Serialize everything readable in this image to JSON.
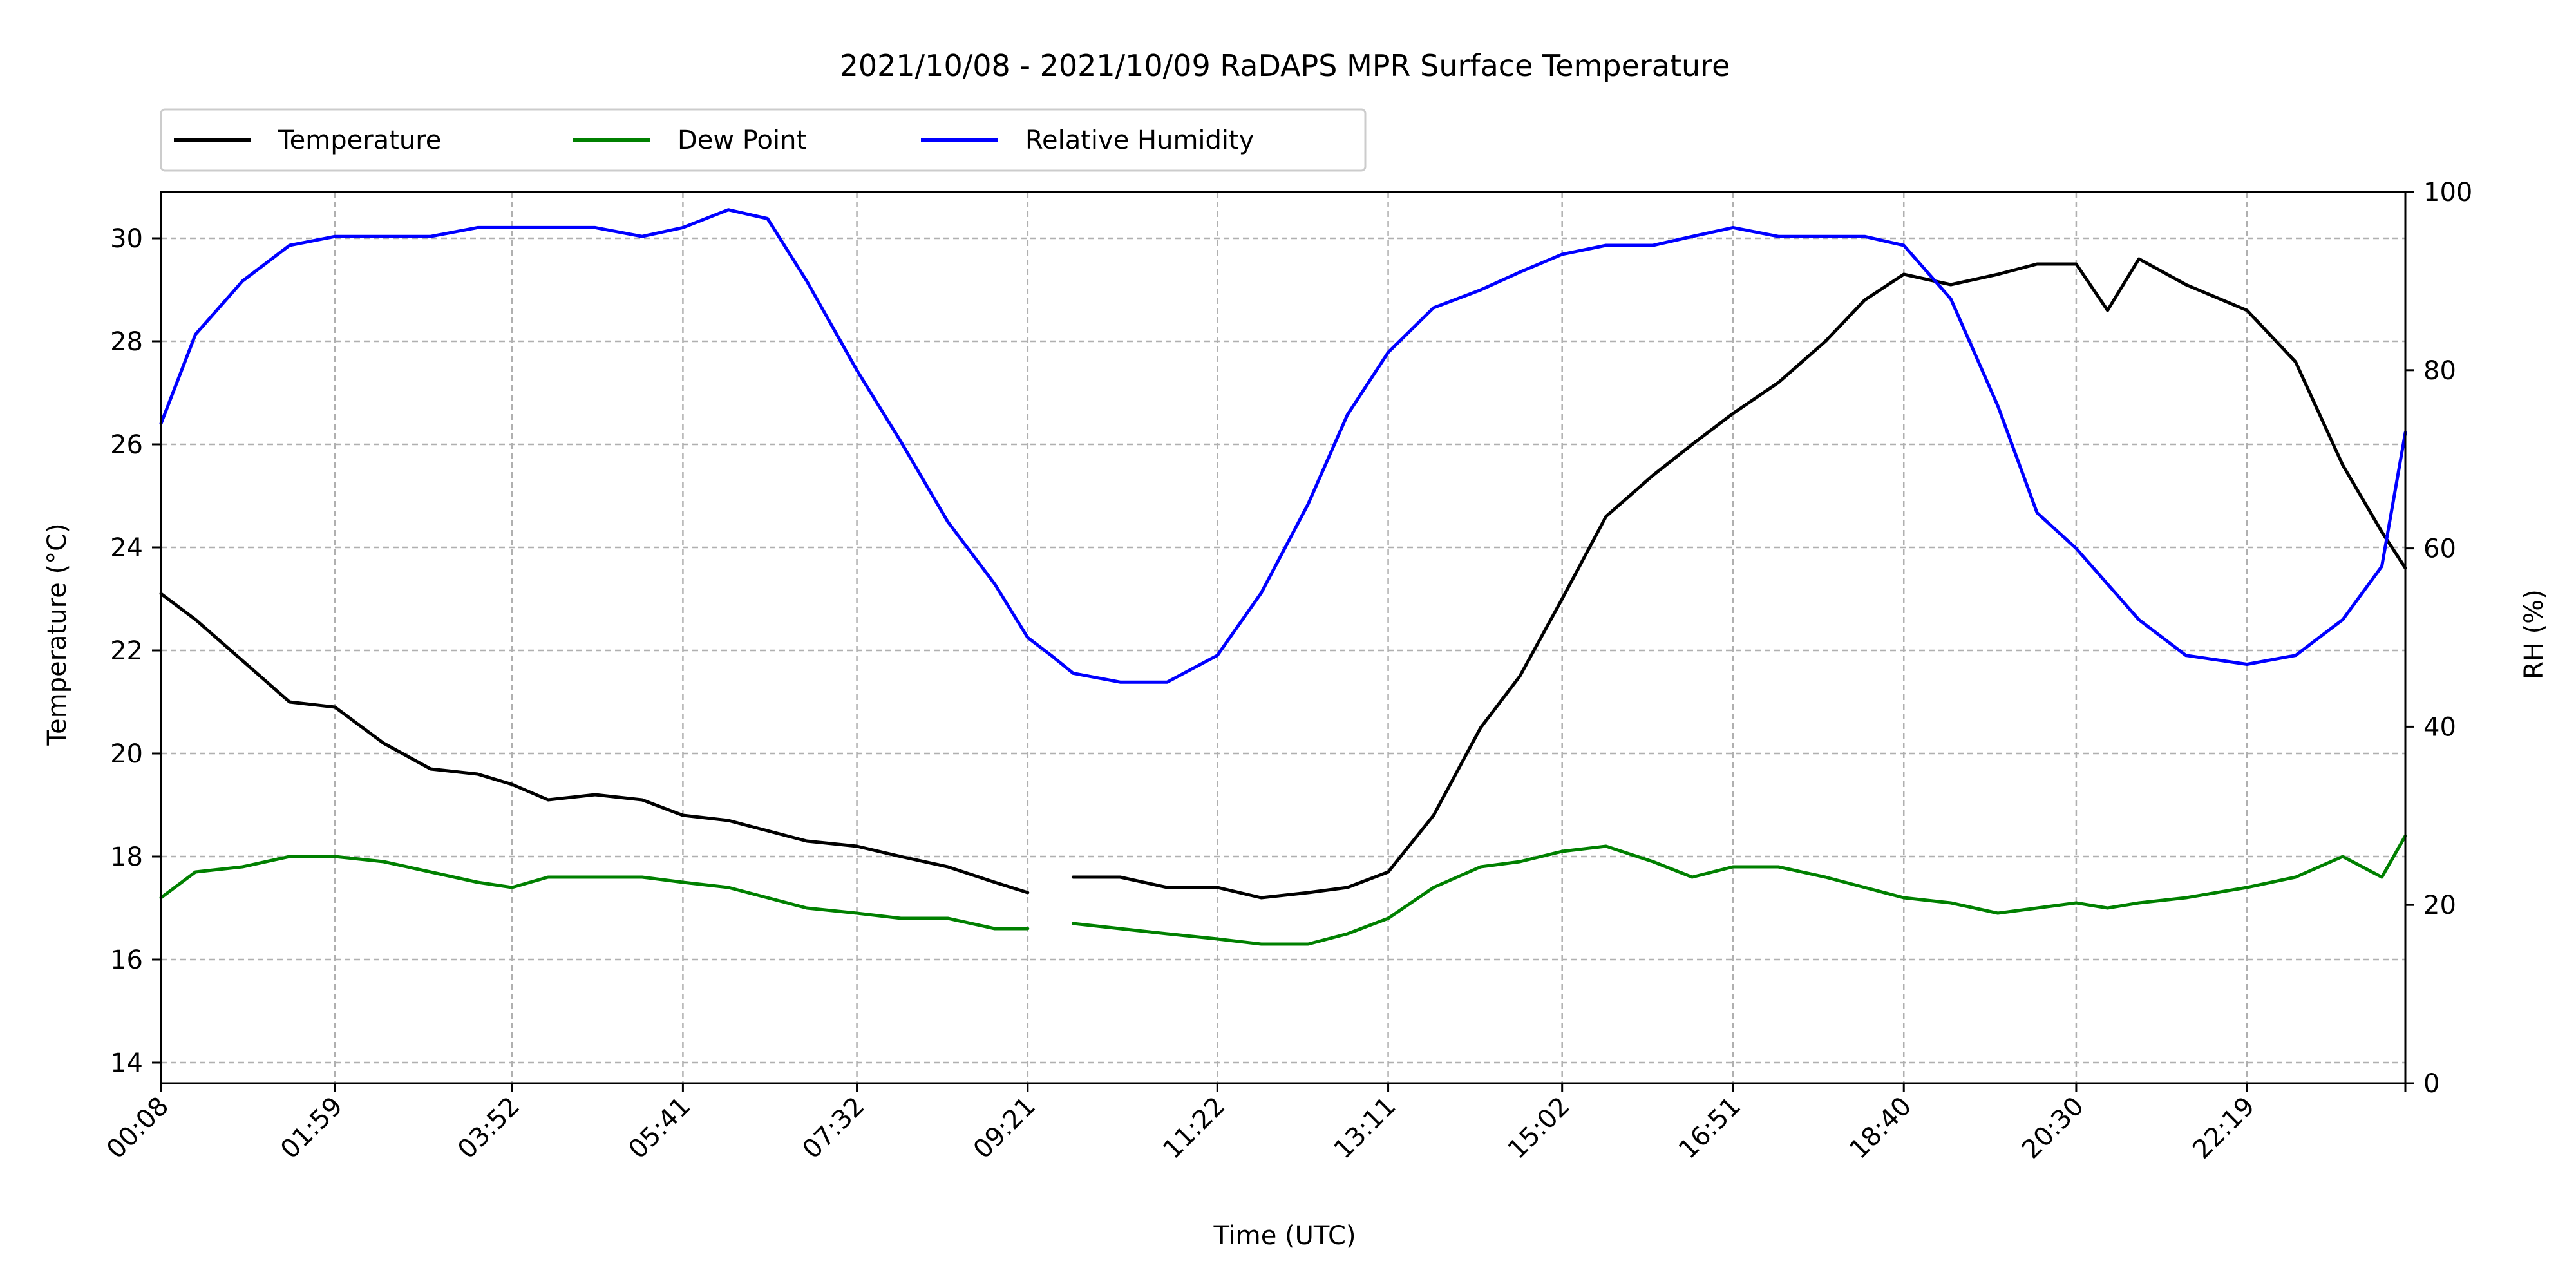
{
  "chart_data": {
    "type": "line",
    "title": "2021/10/08 - 2021/10/09 RaDAPS MPR Surface Temperature",
    "xlabel": "Time (UTC)",
    "ylabel": "Temperature ($^\\circ$C)",
    "ylabel_display": "Temperature (°C)",
    "y2label": "RH (%)",
    "xlim": [
      "00:08",
      "24:00"
    ],
    "ylim": [
      13.6,
      30.9
    ],
    "y2lim": [
      0,
      100
    ],
    "grid": true,
    "legend_placement": "top-left, above plot",
    "x_ticks": [
      "00:08",
      "01:59",
      "03:52",
      "05:41",
      "07:32",
      "09:21",
      "11:22",
      "13:11",
      "15:02",
      "16:51",
      "18:40",
      "20:30",
      "22:19"
    ],
    "y_ticks": [
      "14",
      "16",
      "18",
      "20",
      "22",
      "24",
      "26",
      "28",
      "30"
    ],
    "y2_ticks": [
      "0",
      "20",
      "40",
      "60",
      "80",
      "100"
    ],
    "x": [
      "00:08",
      "00:30",
      "01:00",
      "01:30",
      "01:59",
      "02:30",
      "03:00",
      "03:30",
      "03:52",
      "04:15",
      "04:45",
      "05:15",
      "05:41",
      "06:10",
      "06:35",
      "07:00",
      "07:32",
      "08:00",
      "08:30",
      "09:00",
      "09:21",
      "09:36",
      "09:50",
      "10:20",
      "10:50",
      "11:22",
      "11:50",
      "12:20",
      "12:45",
      "13:11",
      "13:40",
      "14:10",
      "14:35",
      "15:02",
      "15:30",
      "16:00",
      "16:25",
      "16:51",
      "17:20",
      "17:50",
      "18:15",
      "18:40",
      "19:10",
      "19:40",
      "20:05",
      "20:30",
      "20:50",
      "21:10",
      "21:40",
      "22:19",
      "22:50",
      "23:20",
      "23:45",
      "24:00"
    ],
    "series": [
      {
        "name": "Temperature",
        "color": "#000000",
        "values": [
          23.1,
          22.6,
          21.8,
          21.0,
          20.9,
          20.2,
          19.7,
          19.6,
          19.4,
          19.1,
          19.2,
          19.1,
          18.8,
          18.7,
          18.5,
          18.3,
          18.2,
          18.0,
          17.8,
          17.5,
          17.3,
          null,
          17.6,
          17.6,
          17.4,
          17.4,
          17.2,
          17.3,
          17.4,
          17.7,
          18.8,
          20.5,
          21.5,
          23.0,
          24.6,
          25.4,
          26.0,
          26.6,
          27.2,
          28.0,
          28.8,
          29.3,
          29.1,
          29.3,
          29.5,
          29.5,
          28.6,
          29.6,
          29.1,
          28.6,
          27.6,
          25.6,
          24.3,
          23.6
        ]
      },
      {
        "name": "Dew Point",
        "color": "#008000",
        "values": [
          17.2,
          17.7,
          17.8,
          18.0,
          18.0,
          17.9,
          17.7,
          17.5,
          17.4,
          17.6,
          17.6,
          17.6,
          17.5,
          17.4,
          17.2,
          17.0,
          16.9,
          16.8,
          16.8,
          16.6,
          16.6,
          null,
          16.7,
          16.6,
          16.5,
          16.4,
          16.3,
          16.3,
          16.5,
          16.8,
          17.4,
          17.8,
          17.9,
          18.1,
          18.2,
          17.9,
          17.6,
          17.8,
          17.8,
          17.6,
          17.4,
          17.2,
          17.1,
          16.9,
          17.0,
          17.1,
          17.0,
          17.1,
          17.2,
          17.4,
          17.6,
          18.0,
          17.6,
          18.4
        ]
      },
      {
        "name": "Relative Humidity",
        "color": "#0000ff",
        "axis": "right",
        "values": [
          74,
          84,
          90,
          94,
          95,
          95,
          95,
          96,
          96,
          96,
          96,
          95,
          96,
          98,
          97,
          90,
          80,
          72,
          63,
          56,
          50,
          48,
          46,
          45,
          45,
          48,
          55,
          65,
          75,
          82,
          87,
          89,
          91,
          93,
          94,
          94,
          95,
          96,
          95,
          95,
          95,
          94,
          88,
          76,
          64,
          60,
          56,
          52,
          48,
          47,
          48,
          52,
          58,
          73
        ]
      }
    ]
  }
}
